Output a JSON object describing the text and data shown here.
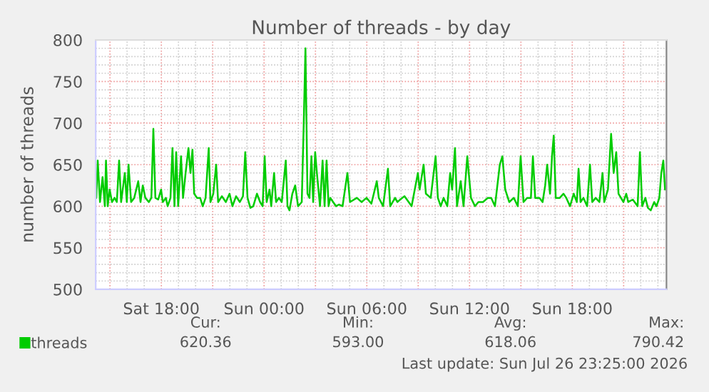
{
  "chart_data": {
    "type": "line",
    "title": "Number of threads - by day",
    "ylabel": "number of threads",
    "xlim": [
      "2026-07-25T14:10",
      "2026-07-26T23:30"
    ],
    "ylim": [
      500,
      800
    ],
    "xticks": [
      {
        "value": "2026-07-25T15:00",
        "label": null
      },
      {
        "value": "2026-07-25T18:00",
        "label": "Sat 18:00"
      },
      {
        "value": "2026-07-25T21:00",
        "label": null
      },
      {
        "value": "2026-07-26T00:00",
        "label": "Sun 00:00"
      },
      {
        "value": "2026-07-26T03:00",
        "label": null
      },
      {
        "value": "2026-07-26T06:00",
        "label": "Sun 06:00"
      },
      {
        "value": "2026-07-26T09:00",
        "label": null
      },
      {
        "value": "2026-07-26T12:00",
        "label": "Sun 12:00"
      },
      {
        "value": "2026-07-26T15:00",
        "label": null
      },
      {
        "value": "2026-07-26T18:00",
        "label": "Sun 18:00"
      },
      {
        "value": "2026-07-26T21:00",
        "label": null
      }
    ],
    "yticks": [
      500,
      550,
      600,
      650,
      700,
      750,
      800
    ],
    "grid": true,
    "legend": "bottom",
    "marker": "none",
    "line_style": "solid",
    "annotations": [
      "Cur:",
      "620.36",
      "Min:",
      "593.00",
      "Avg:",
      "618.06",
      "Max:",
      "790.42",
      "Last update: Sun Jul 26 23:25:00 2026"
    ],
    "series": [
      {
        "name": "threads",
        "color": "#00cc00",
        "x": [
          "2026-07-25T14:12",
          "2026-07-25T14:17",
          "2026-07-25T14:25",
          "2026-07-25T14:34",
          "2026-07-25T14:42",
          "2026-07-25T14:46",
          "2026-07-25T14:52",
          "2026-07-25T14:59",
          "2026-07-25T15:07",
          "2026-07-25T15:16",
          "2026-07-25T15:24",
          "2026-07-25T15:32",
          "2026-07-25T15:39",
          "2026-07-25T15:52",
          "2026-07-25T15:59",
          "2026-07-25T16:05",
          "2026-07-25T16:14",
          "2026-07-25T16:25",
          "2026-07-25T16:39",
          "2026-07-25T16:47",
          "2026-07-25T16:55",
          "2026-07-25T17:04",
          "2026-07-25T17:16",
          "2026-07-25T17:25",
          "2026-07-25T17:32",
          "2026-07-25T17:39",
          "2026-07-25T17:49",
          "2026-07-25T17:59",
          "2026-07-25T18:05",
          "2026-07-25T18:16",
          "2026-07-25T18:22",
          "2026-07-25T18:32",
          "2026-07-25T18:39",
          "2026-07-25T18:46",
          "2026-07-25T18:52",
          "2026-07-25T18:59",
          "2026-07-25T19:09",
          "2026-07-25T19:16",
          "2026-07-25T19:25",
          "2026-07-25T19:35",
          "2026-07-25T19:42",
          "2026-07-25T19:49",
          "2026-07-25T19:55",
          "2026-07-25T20:05",
          "2026-07-25T20:16",
          "2026-07-25T20:25",
          "2026-07-25T20:35",
          "2026-07-25T20:46",
          "2026-07-25T20:52",
          "2026-07-25T21:02",
          "2026-07-25T21:12",
          "2026-07-25T21:19",
          "2026-07-25T21:32",
          "2026-07-25T21:46",
          "2026-07-25T21:59",
          "2026-07-25T22:09",
          "2026-07-25T22:22",
          "2026-07-25T22:35",
          "2026-07-25T22:46",
          "2026-07-25T22:54",
          "2026-07-25T23:02",
          "2026-07-25T23:12",
          "2026-07-25T23:22",
          "2026-07-25T23:35",
          "2026-07-25T23:46",
          "2026-07-25T23:55",
          "2026-07-26T00:02",
          "2026-07-26T00:09",
          "2026-07-26T00:19",
          "2026-07-26T00:25",
          "2026-07-26T00:35",
          "2026-07-26T00:42",
          "2026-07-26T00:52",
          "2026-07-26T01:02",
          "2026-07-26T01:16",
          "2026-07-26T01:22",
          "2026-07-26T01:29",
          "2026-07-26T01:39",
          "2026-07-26T01:49",
          "2026-07-26T01:59",
          "2026-07-26T02:12",
          "2026-07-26T02:19",
          "2026-07-26T02:25",
          "2026-07-26T02:32",
          "2026-07-26T02:39",
          "2026-07-26T02:46",
          "2026-07-26T02:52",
          "2026-07-26T02:59",
          "2026-07-26T03:05",
          "2026-07-26T03:16",
          "2026-07-26T03:25",
          "2026-07-26T03:32",
          "2026-07-26T03:39",
          "2026-07-26T03:46",
          "2026-07-26T03:52",
          "2026-07-26T04:02",
          "2026-07-26T04:12",
          "2026-07-26T04:22",
          "2026-07-26T04:35",
          "2026-07-26T04:52",
          "2026-07-26T05:01",
          "2026-07-26T05:25",
          "2026-07-26T05:42",
          "2026-07-26T05:59",
          "2026-07-26T06:16",
          "2026-07-26T06:35",
          "2026-07-26T06:42",
          "2026-07-26T06:57",
          "2026-07-26T07:14",
          "2026-07-26T07:22",
          "2026-07-26T07:39",
          "2026-07-26T07:47",
          "2026-07-26T08:04",
          "2026-07-26T08:12",
          "2026-07-26T08:37",
          "2026-07-26T08:59",
          "2026-07-26T09:05",
          "2026-07-26T09:19",
          "2026-07-26T09:27",
          "2026-07-26T09:44",
          "2026-07-26T10:01",
          "2026-07-26T10:09",
          "2026-07-26T10:19",
          "2026-07-26T10:29",
          "2026-07-26T10:42",
          "2026-07-26T10:52",
          "2026-07-26T10:59",
          "2026-07-26T11:09",
          "2026-07-26T11:16",
          "2026-07-26T11:29",
          "2026-07-26T11:39",
          "2026-07-26T11:52",
          "2026-07-26T12:05",
          "2026-07-26T12:19",
          "2026-07-26T12:31",
          "2026-07-26T12:47",
          "2026-07-26T13:04",
          "2026-07-26T13:16",
          "2026-07-26T13:29",
          "2026-07-26T13:46",
          "2026-07-26T13:55",
          "2026-07-26T14:05",
          "2026-07-26T14:19",
          "2026-07-26T14:35",
          "2026-07-26T14:49",
          "2026-07-26T14:59",
          "2026-07-26T15:09",
          "2026-07-26T15:22",
          "2026-07-26T15:35",
          "2026-07-26T15:42",
          "2026-07-26T15:50",
          "2026-07-26T16:05",
          "2026-07-26T16:16",
          "2026-07-26T16:25",
          "2026-07-26T16:32",
          "2026-07-26T16:42",
          "2026-07-26T16:49",
          "2026-07-26T16:55",
          "2026-07-26T17:02",
          "2026-07-26T17:16",
          "2026-07-26T17:29",
          "2026-07-26T17:39",
          "2026-07-26T17:52",
          "2026-07-26T18:05",
          "2026-07-26T18:16",
          "2026-07-26T18:22",
          "2026-07-26T18:29",
          "2026-07-26T18:39",
          "2026-07-26T18:52",
          "2026-07-26T19:02",
          "2026-07-26T19:10",
          "2026-07-26T19:22",
          "2026-07-26T19:35",
          "2026-07-26T19:46",
          "2026-07-26T19:52",
          "2026-07-26T20:05",
          "2026-07-26T20:16",
          "2026-07-26T20:25",
          "2026-07-26T20:34",
          "2026-07-26T20:42",
          "2026-07-26T20:59",
          "2026-07-26T21:09",
          "2026-07-26T21:16",
          "2026-07-26T21:32",
          "2026-07-26T21:49",
          "2026-07-26T21:57",
          "2026-07-26T22:05",
          "2026-07-26T22:16",
          "2026-07-26T22:25",
          "2026-07-26T22:35",
          "2026-07-26T22:47",
          "2026-07-26T22:55",
          "2026-07-26T23:05",
          "2026-07-26T23:12",
          "2026-07-26T23:19",
          "2026-07-26T23:25"
        ],
        "values": [
          610,
          655,
          605,
          635,
          600,
          655,
          600,
          620,
          605,
          610,
          605,
          655,
          605,
          640,
          605,
          650,
          605,
          610,
          630,
          605,
          625,
          610,
          605,
          610,
          693,
          610,
          608,
          620,
          605,
          610,
          600,
          610,
          670,
          600,
          665,
          600,
          660,
          610,
          640,
          670,
          640,
          668,
          615,
          610,
          610,
          600,
          610,
          670,
          605,
          615,
          650,
          605,
          612,
          605,
          615,
          600,
          612,
          605,
          612,
          665,
          610,
          598,
          600,
          615,
          605,
          600,
          660,
          605,
          620,
          600,
          640,
          605,
          610,
          605,
          655,
          600,
          595,
          615,
          625,
          600,
          605,
          700,
          790,
          615,
          610,
          660,
          605,
          665,
          640,
          600,
          655,
          600,
          655,
          600,
          610,
          605,
          600,
          602,
          600,
          640,
          605,
          610,
          605,
          610,
          603,
          630,
          610,
          600,
          645,
          600,
          610,
          605,
          610,
          612,
          600,
          640,
          620,
          650,
          615,
          610,
          660,
          610,
          600,
          610,
          600,
          640,
          620,
          670,
          600,
          630,
          600,
          660,
          610,
          600,
          605,
          605,
          610,
          610,
          600,
          650,
          660,
          620,
          605,
          610,
          600,
          660,
          605,
          610,
          610,
          660,
          610,
          610,
          605,
          625,
          650,
          615,
          660,
          685,
          610,
          610,
          615,
          610,
          600,
          615,
          605,
          645,
          605,
          610,
          600,
          650,
          605,
          610,
          605,
          640,
          605,
          620,
          687,
          640,
          665,
          615,
          605,
          615,
          605,
          608,
          600,
          665,
          600,
          610,
          598,
          595,
          605,
          600,
          610,
          640,
          655,
          620
        ]
      }
    ]
  }
}
